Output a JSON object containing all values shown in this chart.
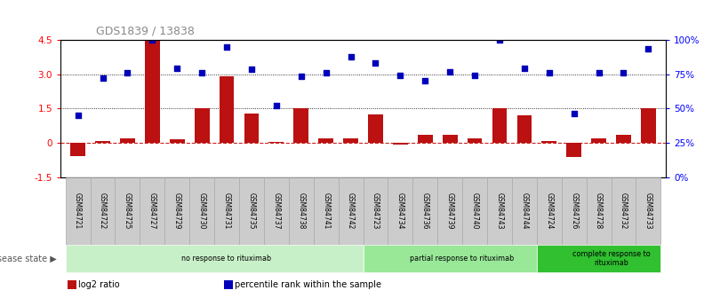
{
  "title": "GDS1839 / 13838",
  "samples": [
    "GSM84721",
    "GSM84722",
    "GSM84725",
    "GSM84727",
    "GSM84729",
    "GSM84730",
    "GSM84731",
    "GSM84735",
    "GSM84737",
    "GSM84738",
    "GSM84741",
    "GSM84742",
    "GSM84723",
    "GSM84734",
    "GSM84736",
    "GSM84739",
    "GSM84740",
    "GSM84743",
    "GSM84744",
    "GSM84724",
    "GSM84726",
    "GSM84728",
    "GSM84732",
    "GSM84733"
  ],
  "log2_ratio": [
    -0.55,
    0.07,
    0.22,
    4.5,
    0.18,
    1.5,
    2.9,
    1.3,
    0.05,
    1.5,
    0.2,
    0.22,
    1.25,
    -0.05,
    0.35,
    0.35,
    0.2,
    1.5,
    1.2,
    0.1,
    -0.6,
    0.2,
    0.35,
    1.5
  ],
  "percentile": [
    1.2,
    2.85,
    3.05,
    4.5,
    3.25,
    3.05,
    4.2,
    3.2,
    1.65,
    2.9,
    3.05,
    3.75,
    3.5,
    2.95,
    2.7,
    3.1,
    2.95,
    4.5,
    3.25,
    3.05,
    1.3,
    3.05,
    3.05,
    4.1
  ],
  "groups": [
    {
      "label": "no response to rituximab",
      "start": 0,
      "end": 12,
      "color": "#c8f0c8"
    },
    {
      "label": "partial response to rituximab",
      "start": 12,
      "end": 19,
      "color": "#98e898"
    },
    {
      "label": "complete response to\nrituximab",
      "start": 19,
      "end": 24,
      "color": "#30c030"
    }
  ],
  "ylim_left": [
    -1.5,
    4.5
  ],
  "yticks_left": [
    -1.5,
    0.0,
    1.5,
    3.0,
    4.5
  ],
  "ytick_labels_left": [
    "-1.5",
    "0",
    "1.5",
    "3.0",
    "4.5"
  ],
  "yticks_right": [
    0,
    25,
    50,
    75,
    100
  ],
  "ytick_labels_right": [
    "0%",
    "25%",
    "50%",
    "75%",
    "100%"
  ],
  "hlines": [
    1.5,
    3.0
  ],
  "bar_color": "#bb1111",
  "scatter_color": "#0000bb",
  "dashed_line_color": "#cc2222",
  "legend": [
    {
      "color": "#bb1111",
      "label": "log2 ratio"
    },
    {
      "color": "#0000bb",
      "label": "percentile rank within the sample"
    }
  ],
  "disease_state_label": "disease state",
  "title_color": "#888888",
  "title_fontsize": 9,
  "sample_cell_color": "#cccccc",
  "cell_edge_color": "#aaaaaa"
}
